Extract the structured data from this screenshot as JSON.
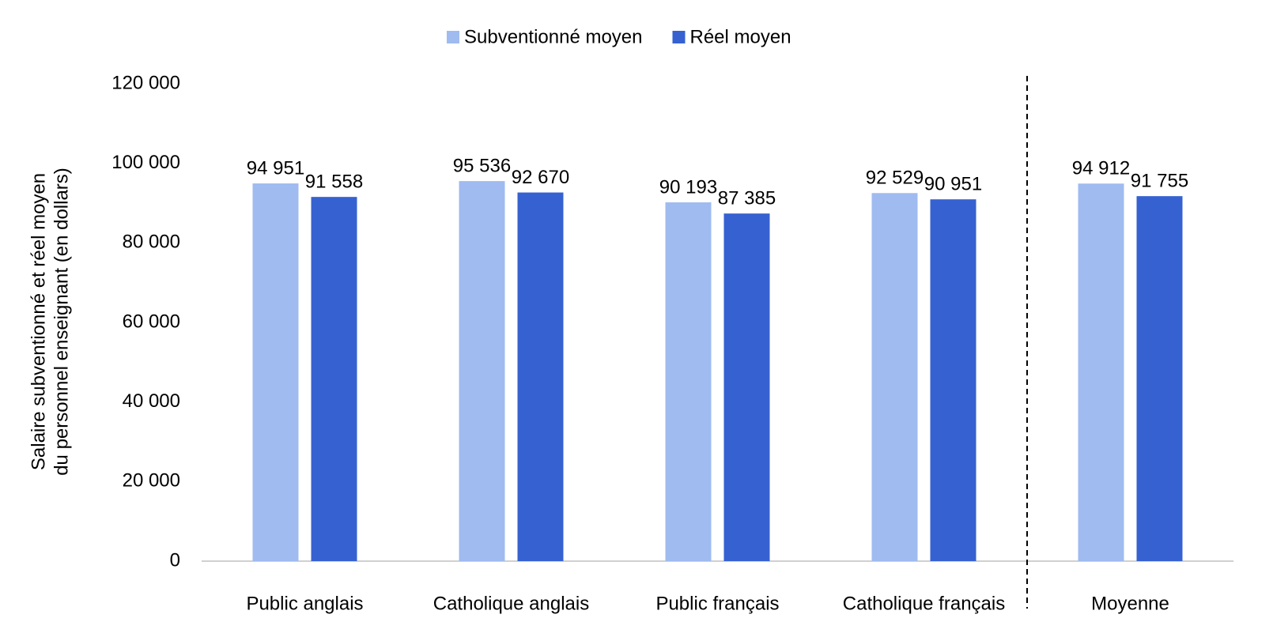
{
  "chart_data": {
    "type": "bar",
    "y_label": [
      "Salaire subventionné et réel moyen",
      "du personnel enseignant (en dollars)"
    ],
    "categories": [
      "Public anglais",
      "Catholique anglais",
      "Public français",
      "Catholique français",
      "Moyenne"
    ],
    "series": [
      {
        "name": "Subventionné moyen",
        "color": "#9fbbf0",
        "values": [
          94951,
          95536,
          90193,
          92529,
          94912
        ],
        "value_labels": [
          "94 951",
          "95 536",
          "90 193",
          "92 529",
          "94 912"
        ]
      },
      {
        "name": "Réel moyen",
        "color": "#3661d1",
        "values": [
          91558,
          92670,
          87385,
          90951,
          91755
        ],
        "value_labels": [
          "91 558",
          "92 670",
          "87 385",
          "90 951",
          "91 755"
        ]
      }
    ],
    "ylim": [
      0,
      120000
    ],
    "yticks": [
      0,
      {
        "value": 20000,
        "label": "20 000"
      },
      {
        "value": 40000,
        "label": "40 000"
      },
      {
        "value": 60000,
        "label": "60 000"
      },
      {
        "value": 80000,
        "label": "80 000"
      },
      {
        "value": 100000,
        "label": "100 000"
      },
      {
        "value": 120000,
        "label": "120 000"
      }
    ],
    "grid": false,
    "legend": "top"
  }
}
